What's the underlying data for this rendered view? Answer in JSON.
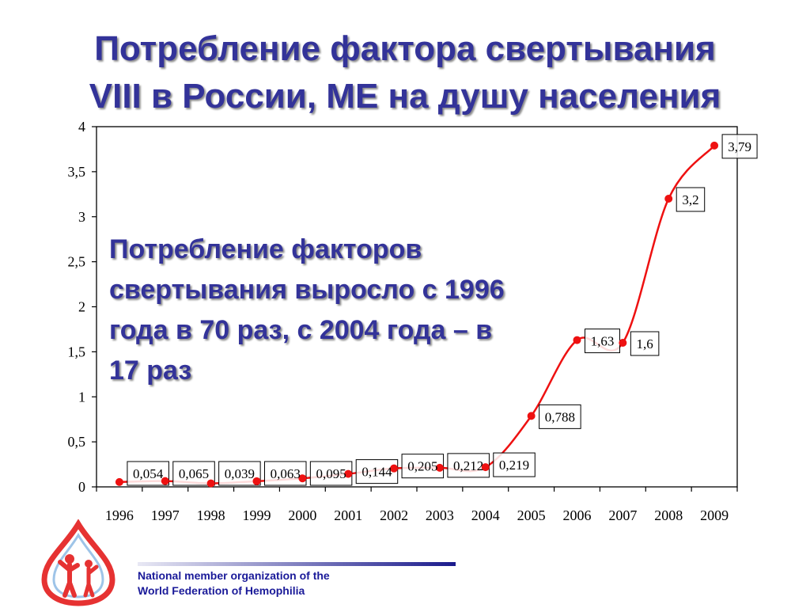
{
  "title_line1": "Потребление фактора свертывания",
  "title_line2": "VIII в России, МЕ на душу населения",
  "annotation": [
    "Потребление факторов",
    "свертывания выросло с 1996",
    "года в 70 раз, с 2004 года – в",
    "17 раз"
  ],
  "footer_line1": "National member organization of the",
  "footer_line2": "World Federation of Hemophilia",
  "colors": {
    "title": "#333399",
    "series": "#ee1111",
    "footer": "#1a1a99",
    "logo": "#e63232"
  },
  "chart_data": {
    "type": "line",
    "categories": [
      "1996",
      "1997",
      "1998",
      "1999",
      "2000",
      "2001",
      "2002",
      "2003",
      "2004",
      "2005",
      "2006",
      "2007",
      "2008",
      "2009"
    ],
    "series": [
      {
        "values": [
          0.054,
          0.065,
          0.039,
          0.063,
          0.095,
          0.144,
          0.205,
          0.212,
          0.219,
          0.788,
          1.63,
          1.6,
          3.2,
          3.79
        ],
        "labels": [
          "0,054",
          "0,065",
          "0,039",
          "0,063",
          "0,095",
          "0,144",
          "0,205",
          "0,212",
          "0,219",
          "0,788",
          "1,63",
          "1,6",
          "3,2",
          "3,79"
        ]
      }
    ],
    "ylim": [
      0,
      4
    ],
    "yticks": [
      0,
      0.5,
      1,
      1.5,
      2,
      2.5,
      3,
      3.5,
      4
    ],
    "ytick_labels": [
      "0",
      "0,5",
      "1",
      "1,5",
      "2",
      "2,5",
      "3",
      "3,5",
      "4"
    ],
    "grid": false,
    "legend": "none",
    "smooth": true
  }
}
